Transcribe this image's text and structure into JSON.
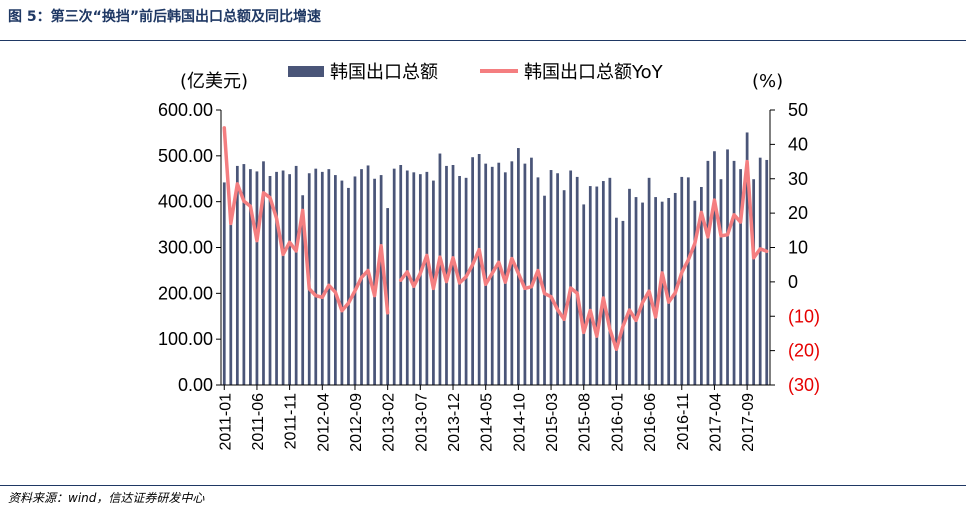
{
  "header": {
    "title": "图 5：第三次“换挡”前后韩国出口总额及同比增速"
  },
  "footer": {
    "source": "资料来源：wind，信达证券研发中心"
  },
  "chart_data": {
    "type": "bar+line",
    "title": "",
    "y_left_label": "(亿美元)",
    "y_right_label": "(%)",
    "y_left_ticks": [
      "0.00",
      "100.00",
      "200.00",
      "300.00",
      "400.00",
      "500.00",
      "600.00"
    ],
    "y_right_ticks": [
      "(30)",
      "(20)",
      "(10)",
      "0",
      "10",
      "20",
      "30",
      "40",
      "50"
    ],
    "ylim_left": [
      0,
      600
    ],
    "ylim_right": [
      -30,
      50
    ],
    "x_start": "2011-01",
    "x_end": "2017-12",
    "x_tick_labels": [
      "2011-01",
      "2011-06",
      "2011-11",
      "2012-04",
      "2012-09",
      "2013-02",
      "2013-07",
      "2013-12",
      "2014-05",
      "2014-10",
      "2015-03",
      "2015-08",
      "2016-01",
      "2016-06",
      "2016-11",
      "2017-04",
      "2017-09"
    ],
    "legend": {
      "position": "top",
      "bar": "韩国出口总额",
      "line": "韩国出口总额YoY"
    },
    "colors": {
      "bar": "#4a5578",
      "line": "#f47e80",
      "negative_tick": "#e60000",
      "text": "#000000",
      "axis": "#000000"
    },
    "series": [
      {
        "name": "韩国出口总额",
        "type": "bar",
        "axis": "left",
        "values": [
          442,
          385,
          478,
          482,
          471,
          466,
          488,
          456,
          465,
          468,
          460,
          478,
          414,
          462,
          472,
          465,
          471,
          458,
          446,
          430,
          455,
          471,
          479,
          450,
          458,
          386,
          472,
          480,
          468,
          464,
          460,
          465,
          446,
          505,
          478,
          480,
          456,
          452,
          497,
          504,
          483,
          476,
          485,
          464,
          488,
          517,
          483,
          496,
          453,
          413,
          469,
          462,
          425,
          468,
          454,
          394,
          434,
          433,
          445,
          452,
          365,
          358,
          428,
          410,
          398,
          452,
          410,
          400,
          408,
          419,
          454,
          453,
          402,
          432,
          489,
          510,
          449,
          514,
          489,
          471,
          551,
          449,
          496,
          491
        ]
      },
      {
        "name": "韩国出口总额YoY",
        "type": "line",
        "axis": "right",
        "values": [
          44.8,
          17,
          28.5,
          23.5,
          22,
          12,
          25.9,
          24.5,
          18.5,
          8,
          11.5,
          9,
          20.8,
          -2,
          -4,
          -4.5,
          -1,
          -3,
          -8.4,
          -6.2,
          -2.6,
          1.3,
          3.3,
          -4,
          10.5,
          -9,
          null,
          0.5,
          2.9,
          -1.3,
          2.5,
          7.7,
          -1.9,
          7.2,
          0.1,
          7,
          -0.3,
          1.5,
          5,
          9.4,
          -0.7,
          2.5,
          5.7,
          -0.1,
          6.8,
          2.5,
          -1.9,
          -1.4,
          3.3,
          -3.4,
          -4.3,
          -8.1,
          -10.9,
          -1.8,
          -3.3,
          -14.7,
          -8.3,
          -15.8,
          -4.7,
          -13.8,
          -19.6,
          -12.9,
          -8.2,
          -11.2,
          -6,
          -2.7,
          -10.2,
          2.6,
          -5.9,
          -3.2,
          2.7,
          6.4,
          11.2,
          20.2,
          13.1,
          23.8,
          13.4,
          13.7,
          19.5,
          17.4,
          35,
          7,
          9.6,
          8.9
        ]
      }
    ]
  }
}
